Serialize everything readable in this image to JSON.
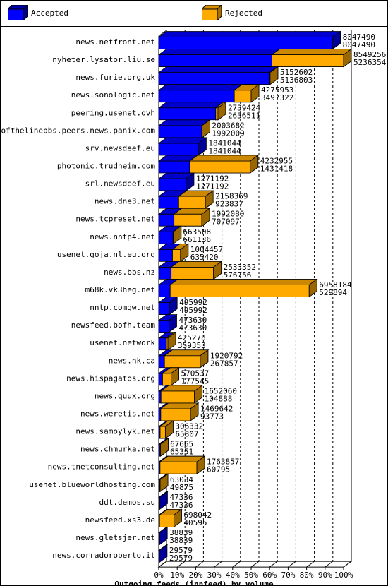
{
  "legend": {
    "accepted_label": "Accepted",
    "rejected_label": "Rejected"
  },
  "colors": {
    "accepted": "#0000ff",
    "rejected": "#ffaa00"
  },
  "chart_data": {
    "type": "bar",
    "orientation": "horizontal",
    "stacked": true,
    "xlabel": "Outgoing feeds (innfeed) by volume",
    "x_ticks": [
      "0%",
      "10%",
      "20%",
      "30%",
      "40%",
      "50%",
      "60%",
      "70%",
      "80%",
      "90%",
      "100%"
    ],
    "xlim": [
      0,
      8549256
    ],
    "categories": [
      "news.netfront.net",
      "nyheter.lysator.liu.se",
      "news.furie.org.uk",
      "news.sonologic.net",
      "peering.usenet.ovh",
      "endofthelinebbs.peers.news.panix.com",
      "srv.newsdeef.eu",
      "photonic.trudheim.com",
      "srl.newsdeef.eu",
      "news.dne3.net",
      "news.tcpreset.net",
      "news.nntp4.net",
      "usenet.goja.nl.eu.org",
      "news.bbs.nz",
      "m68k.vk3heg.net",
      "nntp.comgw.net",
      "newsfeed.bofh.team",
      "usenet.network",
      "news.nk.ca",
      "news.hispagatos.org",
      "news.quux.org",
      "news.weretis.net",
      "news.samoylyk.net",
      "news.chmurka.net",
      "news.tnetconsulting.net",
      "usenet.blueworldhosting.com",
      "ddt.demos.su",
      "newsfeed.xs3.de",
      "news.gletsjer.net",
      "news.corradoroberto.it"
    ],
    "offered": [
      8047490,
      8549256,
      5152602,
      4275953,
      2739424,
      2003682,
      1841044,
      4232955,
      1271192,
      2158369,
      1992080,
      663508,
      1004457,
      2533352,
      6958184,
      495992,
      473630,
      425278,
      1920792,
      570537,
      1652060,
      1469642,
      306332,
      67665,
      1763857,
      63034,
      47336,
      698042,
      38839,
      29579
    ],
    "accepted": [
      8047490,
      5236354,
      5136803,
      3497322,
      2636511,
      1992009,
      1841044,
      1431418,
      1271192,
      923837,
      707097,
      661136,
      635420,
      576756,
      529894,
      495992,
      473630,
      359353,
      267857,
      177545,
      104888,
      93773,
      65807,
      65351,
      60795,
      49875,
      47336,
      40595,
      38839,
      29579
    ],
    "series": [
      {
        "name": "Accepted",
        "values": [
          8047490,
          5236354,
          5136803,
          3497322,
          2636511,
          1992009,
          1841044,
          1431418,
          1271192,
          923837,
          707097,
          661136,
          635420,
          576756,
          529894,
          495992,
          473630,
          359353,
          267857,
          177545,
          104888,
          93773,
          65807,
          65351,
          60795,
          49875,
          47336,
          40595,
          38839,
          29579
        ]
      },
      {
        "name": "Rejected",
        "values": [
          0,
          3312902,
          15799,
          778631,
          102913,
          11673,
          0,
          2801537,
          0,
          1234532,
          1284983,
          2372,
          369037,
          1956596,
          6428290,
          0,
          0,
          65925,
          1652935,
          392992,
          1547172,
          1375869,
          240525,
          2314,
          1703062,
          13159,
          0,
          657447,
          0,
          0
        ]
      }
    ]
  }
}
